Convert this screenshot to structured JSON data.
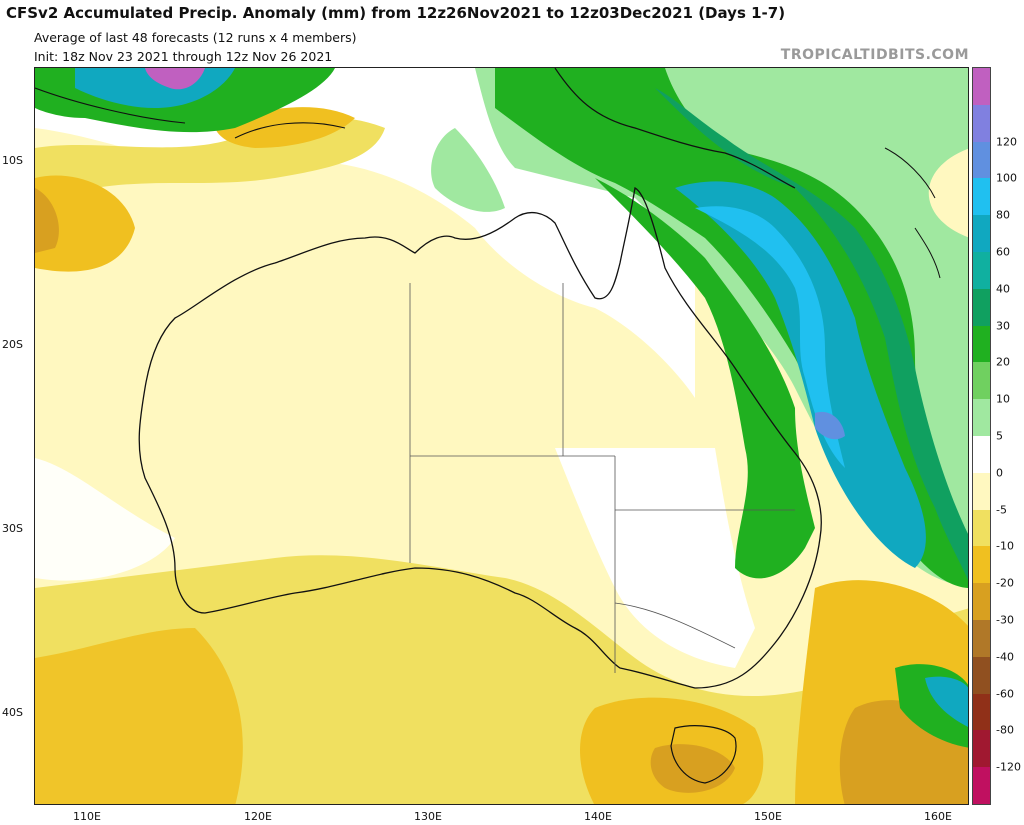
{
  "header": {
    "title": "CFSv2 Accumulated Precip. Anomaly (mm) from 12z26Nov2021 to 12z03Dec2021 (Days 1-7)",
    "subtitle": "Average of last 48 forecasts (12 runs x 4 members)",
    "init": "Init: 18z Nov 23 2021 through 12z Nov 26 2021",
    "credit": "TROPICALTIDBITS.COM"
  },
  "axes": {
    "lat_labels": [
      "10S",
      "20S",
      "30S",
      "40S"
    ],
    "lon_labels": [
      "110E",
      "120E",
      "130E",
      "140E",
      "150E",
      "160E"
    ]
  },
  "colorbar": {
    "labels": [
      "120",
      "100",
      "80",
      "60",
      "40",
      "30",
      "20",
      "10",
      "5",
      "0",
      "-5",
      "-10",
      "-20",
      "-30",
      "-40",
      "-60",
      "-80",
      "-120"
    ],
    "colors": [
      "#c060c0",
      "#8080e0",
      "#6090e0",
      "#20c0f0",
      "#10a8c0",
      "#10b0a0",
      "#10a060",
      "#20b020",
      "#70d060",
      "#a0e8a0",
      "#ffffff",
      "#fff8c0",
      "#f0e060",
      "#f0c020",
      "#d8a020",
      "#b07828",
      "#905020",
      "#903018",
      "#a01830",
      "#c01060"
    ]
  },
  "map": {
    "region": "Australia",
    "colors": {
      "wet_light": "#a0e8a0",
      "wet_mid": "#20b020",
      "wet_deep": "#10a060",
      "wet_teal": "#10a8c0",
      "wet_cyan": "#20c0f0",
      "wet_blue": "#6090e0",
      "wet_purple": "#c060c0",
      "dry_light": "#fff8c0",
      "dry_mid": "#f0e060",
      "dry_deep": "#f0c020",
      "dry_orange": "#d8a020",
      "dry_brown": "#b07828"
    }
  }
}
